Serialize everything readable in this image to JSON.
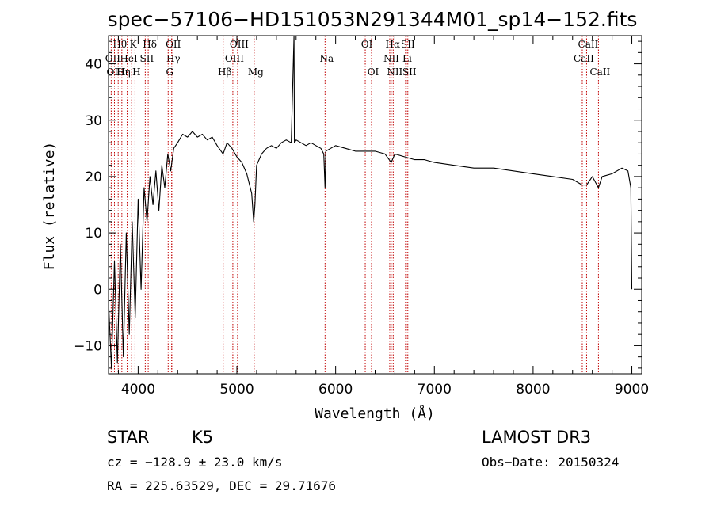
{
  "chart_data": {
    "type": "line",
    "title": "spec−57106−HD151053N291344M01_sp14−152.fits",
    "xlabel": "Wavelength (Å)",
    "ylabel": "Flux (relative)",
    "xlim": [
      3700,
      9100
    ],
    "ylim": [
      -15,
      45
    ],
    "x_ticks": [
      {
        "value": 4000,
        "label": "4000"
      },
      {
        "value": 5000,
        "label": "5000"
      },
      {
        "value": 6000,
        "label": "6000"
      },
      {
        "value": 7000,
        "label": "7000"
      },
      {
        "value": 8000,
        "label": "8000"
      },
      {
        "value": 9000,
        "label": "9000"
      }
    ],
    "y_ticks": [
      {
        "value": -10,
        "label": "−10"
      },
      {
        "value": 0,
        "label": "0"
      },
      {
        "value": 10,
        "label": "10"
      },
      {
        "value": 20,
        "label": "20"
      },
      {
        "value": 30,
        "label": "30"
      },
      {
        "value": 40,
        "label": "40"
      }
    ],
    "series": [
      {
        "name": "spectrum",
        "x": [
          3700,
          3730,
          3760,
          3790,
          3820,
          3850,
          3880,
          3910,
          3940,
          3970,
          4000,
          4030,
          4060,
          4090,
          4120,
          4150,
          4180,
          4210,
          4240,
          4270,
          4300,
          4330,
          4360,
          4400,
          4450,
          4500,
          4550,
          4600,
          4650,
          4700,
          4750,
          4800,
          4860,
          4900,
          4950,
          5000,
          5050,
          5100,
          5150,
          5170,
          5183,
          5200,
          5250,
          5300,
          5350,
          5400,
          5450,
          5500,
          5550,
          5578,
          5582,
          5600,
          5650,
          5700,
          5750,
          5800,
          5850,
          5880,
          5893,
          5900,
          5950,
          6000,
          6100,
          6200,
          6300,
          6400,
          6500,
          6563,
          6600,
          6700,
          6800,
          6900,
          7000,
          7200,
          7400,
          7600,
          7800,
          8000,
          8200,
          8400,
          8498,
          8542,
          8600,
          8662,
          8700,
          8800,
          8900,
          8960,
          8990,
          9000
        ],
        "y": [
          -2,
          -14,
          5,
          -13,
          8,
          -12,
          10,
          -8,
          12,
          -5,
          16,
          0,
          18,
          12,
          20,
          15,
          21,
          14,
          22,
          18,
          24,
          21,
          25,
          26,
          27.5,
          27,
          28,
          27,
          27.5,
          26.5,
          27,
          25.5,
          24,
          26,
          25,
          23.5,
          22.5,
          20.5,
          17,
          12,
          15,
          22,
          24,
          25,
          25.5,
          25,
          26,
          26.5,
          26,
          45,
          26,
          26.5,
          26,
          25.5,
          26,
          25.5,
          25,
          24,
          18,
          24.5,
          25,
          25.5,
          25,
          24.5,
          24.5,
          24.5,
          24,
          22.5,
          24,
          23.5,
          23,
          23,
          22.5,
          22,
          21.5,
          21.5,
          21,
          20.5,
          20,
          19.5,
          18.5,
          18.5,
          20,
          18,
          20,
          20.5,
          21.5,
          21,
          18,
          0
        ]
      }
    ],
    "line_markers": [
      {
        "label": "Hθ",
        "x": 3798,
        "row": 0
      },
      {
        "label": "K",
        "x": 3934,
        "row": 0
      },
      {
        "label": "Hδ",
        "x": 4102,
        "row": 0
      },
      {
        "label": "OII",
        "x": 4340,
        "row": 0
      },
      {
        "label": "OIII",
        "x": 5007,
        "row": 0
      },
      {
        "label": "OI",
        "x": 6300,
        "row": 0
      },
      {
        "label": "Hα",
        "x": 6563,
        "row": 0
      },
      {
        "label": "SII",
        "x": 6716,
        "row": 0
      },
      {
        "label": "CaII",
        "x": 8542,
        "row": 0
      },
      {
        "label": "OII",
        "x": 3727,
        "row": 1
      },
      {
        "label": "HeI",
        "x": 3889,
        "row": 1
      },
      {
        "label": "SII",
        "x": 4072,
        "row": 1
      },
      {
        "label": "Hγ",
        "x": 4340,
        "row": 1
      },
      {
        "label": "OIII",
        "x": 4959,
        "row": 1
      },
      {
        "label": "Na",
        "x": 5893,
        "row": 1
      },
      {
        "label": "NII",
        "x": 6548,
        "row": 1
      },
      {
        "label": "Li",
        "x": 6708,
        "row": 1
      },
      {
        "label": "CaII",
        "x": 8498,
        "row": 1
      },
      {
        "label": "OIII",
        "x": 3760,
        "row": 2
      },
      {
        "label": "Hη",
        "x": 3835,
        "row": 2
      },
      {
        "label": "H",
        "x": 3968,
        "row": 2
      },
      {
        "label": "G",
        "x": 4304,
        "row": 2
      },
      {
        "label": "Hβ",
        "x": 4861,
        "row": 2
      },
      {
        "label": "Mg",
        "x": 5175,
        "row": 2
      },
      {
        "label": "OI",
        "x": 6364,
        "row": 2
      },
      {
        "label": "NII",
        "x": 6583,
        "row": 2
      },
      {
        "label": "SII",
        "x": 6731,
        "row": 2
      },
      {
        "label": "CaII",
        "x": 8662,
        "row": 2
      }
    ]
  },
  "info": {
    "object_class": "STAR",
    "subclass": "K5",
    "survey": "LAMOST DR3",
    "redshift": "cz = −128.9 ± 23.0 km/s",
    "obs_date": "Obs−Date: 20150324",
    "coords": "RA = 225.63529, DEC =  29.71676"
  },
  "colors": {
    "spectrum": "#000000",
    "marker": "#c00000",
    "axes": "#000000"
  }
}
